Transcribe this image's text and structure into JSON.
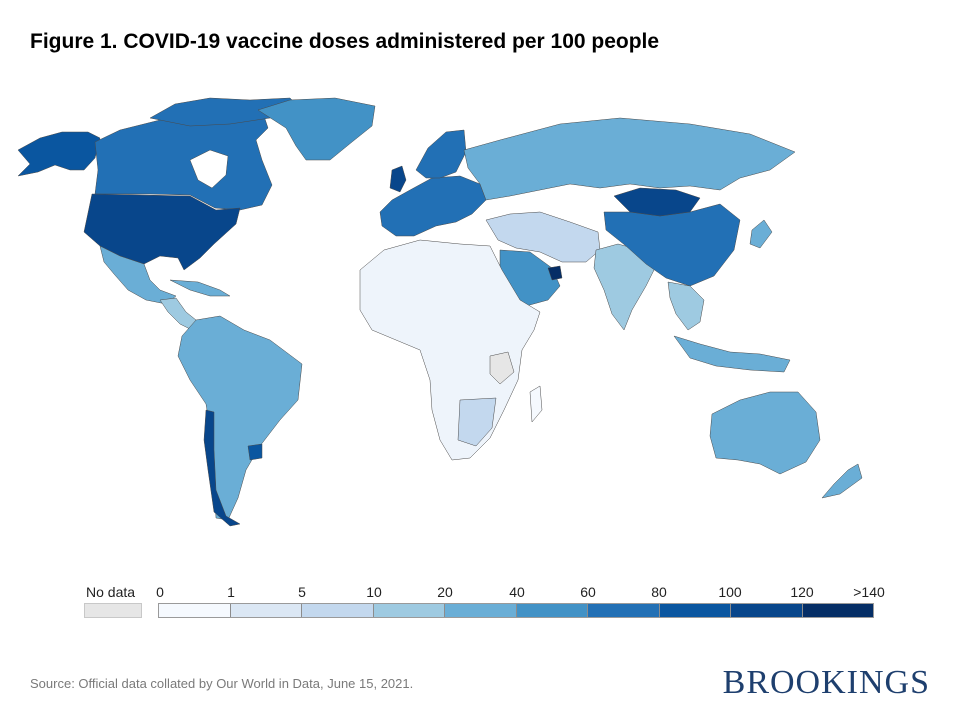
{
  "title": "Figure 1. COVID-19 vaccine doses administered per 100 people",
  "map": {
    "region_fill_levels": {
      "canada": "60-80",
      "united-states": "80-100",
      "alaska": "80-100",
      "greenland": "40-60",
      "mexico": "20-40",
      "central-america": "10-20",
      "south-america": "20-40",
      "chile": "100-120",
      "uruguay": "80-100",
      "europe-west": "60-80",
      "united-kingdom": "100-120",
      "scandinavia": "60-80",
      "russia": "20-40",
      "middle-east": "10-20",
      "saudi-arabia": "40-60",
      "uae": "120-140",
      "africa": "0-5",
      "india": "20-40",
      "china": "60-80",
      "mongolia": "100-120",
      "southeast-asia": "10-20",
      "australia": "20-40",
      "new-zealand": "20-40",
      "unknown-grey": "No data"
    }
  },
  "legend": {
    "nodata_label": "No data",
    "tick_labels": [
      "0",
      "1",
      "5",
      "10",
      "20",
      "40",
      "60",
      "80",
      "100",
      "120",
      ">140"
    ],
    "bin_colors": [
      "#f5f9fe",
      "#dbe7f4",
      "#c3d8ee",
      "#9ecae1",
      "#6aaed6",
      "#4292c6",
      "#2270b5",
      "#0a56a0",
      "#08468b",
      "#052e66"
    ],
    "nodata_color": "#e6e6e6"
  },
  "source": "Source: Official data collated by Our World in Data, June 15, 2021.",
  "brand": "BROOKINGS"
}
